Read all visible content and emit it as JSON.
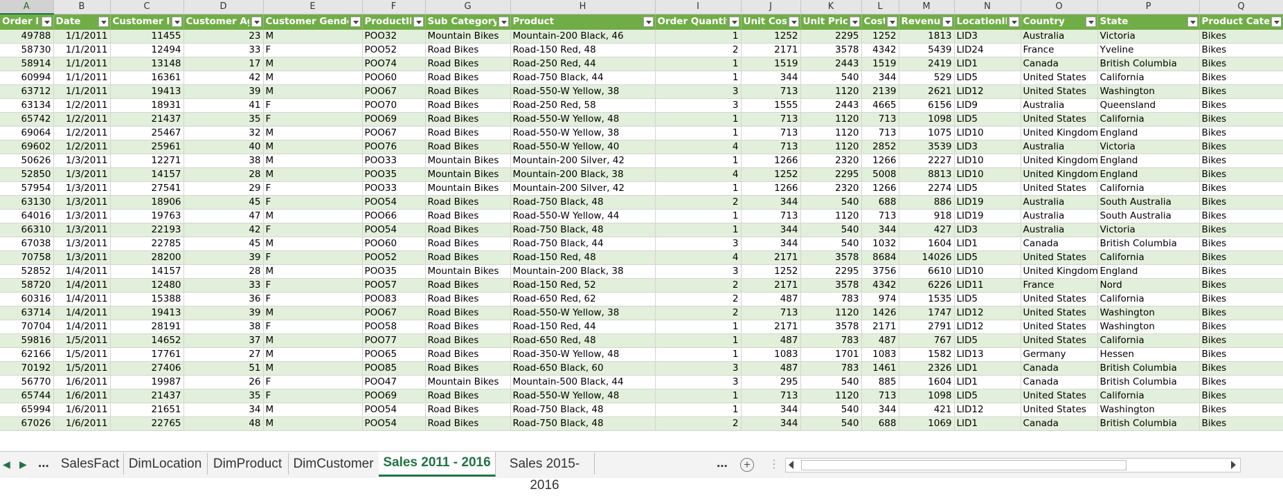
{
  "columns": [
    {
      "letter": "A",
      "header": "Order ID",
      "align": "num"
    },
    {
      "letter": "B",
      "header": "Date",
      "align": "num"
    },
    {
      "letter": "C",
      "header": "Customer ID",
      "align": "num"
    },
    {
      "letter": "D",
      "header": "Customer Age",
      "align": "num"
    },
    {
      "letter": "E",
      "header": "Customer Gender",
      "align": "txt"
    },
    {
      "letter": "F",
      "header": "ProductID",
      "align": "txt"
    },
    {
      "letter": "G",
      "header": "Sub Category",
      "align": "txt"
    },
    {
      "letter": "H",
      "header": "Product",
      "align": "txt"
    },
    {
      "letter": "I",
      "header": "Order Quantity",
      "align": "num"
    },
    {
      "letter": "J",
      "header": "Unit Cost",
      "align": "num"
    },
    {
      "letter": "K",
      "header": "Unit Price",
      "align": "num"
    },
    {
      "letter": "L",
      "header": "Cost",
      "align": "num"
    },
    {
      "letter": "M",
      "header": "Revenue",
      "align": "num"
    },
    {
      "letter": "N",
      "header": "LocationID",
      "align": "txt"
    },
    {
      "letter": "O",
      "header": "Country",
      "align": "txt"
    },
    {
      "letter": "P",
      "header": "State",
      "align": "txt"
    },
    {
      "letter": "Q",
      "header": "Product Category",
      "align": "txt"
    }
  ],
  "active_column": "A",
  "rows": [
    [
      "49788",
      "1/1/2011",
      "11455",
      "23",
      "M",
      "POO32",
      "Mountain Bikes",
      "Mountain-200 Black, 46",
      "1",
      "1252",
      "2295",
      "1252",
      "1813",
      "LID3",
      "Australia",
      "Victoria",
      "Bikes"
    ],
    [
      "58730",
      "1/1/2011",
      "12494",
      "33",
      "F",
      "POO52",
      "Road Bikes",
      "Road-150 Red, 48",
      "2",
      "2171",
      "3578",
      "4342",
      "5439",
      "LID24",
      "France",
      "Yveline",
      "Bikes"
    ],
    [
      "58914",
      "1/1/2011",
      "13148",
      "17",
      "M",
      "POO74",
      "Road Bikes",
      "Road-250 Red, 44",
      "1",
      "1519",
      "2443",
      "1519",
      "2419",
      "LID1",
      "Canada",
      "British Columbia",
      "Bikes"
    ],
    [
      "60994",
      "1/1/2011",
      "16361",
      "42",
      "M",
      "POO60",
      "Road Bikes",
      "Road-750 Black, 44",
      "1",
      "344",
      "540",
      "344",
      "529",
      "LID5",
      "United States",
      "California",
      "Bikes"
    ],
    [
      "63712",
      "1/1/2011",
      "19413",
      "39",
      "M",
      "POO67",
      "Road Bikes",
      "Road-550-W Yellow, 38",
      "3",
      "713",
      "1120",
      "2139",
      "2621",
      "LID12",
      "United States",
      "Washington",
      "Bikes"
    ],
    [
      "63134",
      "1/2/2011",
      "18931",
      "41",
      "F",
      "POO70",
      "Road Bikes",
      "Road-250 Red, 58",
      "3",
      "1555",
      "2443",
      "4665",
      "6156",
      "LID9",
      "Australia",
      "Queensland",
      "Bikes"
    ],
    [
      "65742",
      "1/2/2011",
      "21437",
      "35",
      "F",
      "POO69",
      "Road Bikes",
      "Road-550-W Yellow, 48",
      "1",
      "713",
      "1120",
      "713",
      "1098",
      "LID5",
      "United States",
      "California",
      "Bikes"
    ],
    [
      "69064",
      "1/2/2011",
      "25467",
      "32",
      "M",
      "POO67",
      "Road Bikes",
      "Road-550-W Yellow, 38",
      "1",
      "713",
      "1120",
      "713",
      "1075",
      "LID10",
      "United Kingdom",
      "England",
      "Bikes"
    ],
    [
      "69602",
      "1/2/2011",
      "25961",
      "40",
      "M",
      "POO76",
      "Road Bikes",
      "Road-550-W Yellow, 40",
      "4",
      "713",
      "1120",
      "2852",
      "3539",
      "LID3",
      "Australia",
      "Victoria",
      "Bikes"
    ],
    [
      "50626",
      "1/3/2011",
      "12271",
      "38",
      "M",
      "POO33",
      "Mountain Bikes",
      "Mountain-200 Silver, 42",
      "1",
      "1266",
      "2320",
      "1266",
      "2227",
      "LID10",
      "United Kingdom",
      "England",
      "Bikes"
    ],
    [
      "52850",
      "1/3/2011",
      "14157",
      "28",
      "M",
      "POO35",
      "Mountain Bikes",
      "Mountain-200 Black, 38",
      "4",
      "1252",
      "2295",
      "5008",
      "8813",
      "LID10",
      "United Kingdom",
      "England",
      "Bikes"
    ],
    [
      "57954",
      "1/3/2011",
      "27541",
      "29",
      "F",
      "POO33",
      "Mountain Bikes",
      "Mountain-200 Silver, 42",
      "1",
      "1266",
      "2320",
      "1266",
      "2274",
      "LID5",
      "United States",
      "California",
      "Bikes"
    ],
    [
      "63130",
      "1/3/2011",
      "18906",
      "45",
      "F",
      "POO54",
      "Road Bikes",
      "Road-750 Black, 48",
      "2",
      "344",
      "540",
      "688",
      "886",
      "LID19",
      "Australia",
      "South Australia",
      "Bikes"
    ],
    [
      "64016",
      "1/3/2011",
      "19763",
      "47",
      "M",
      "POO66",
      "Road Bikes",
      "Road-550-W Yellow, 44",
      "1",
      "713",
      "1120",
      "713",
      "918",
      "LID19",
      "Australia",
      "South Australia",
      "Bikes"
    ],
    [
      "66310",
      "1/3/2011",
      "22193",
      "42",
      "F",
      "POO54",
      "Road Bikes",
      "Road-750 Black, 48",
      "1",
      "344",
      "540",
      "344",
      "427",
      "LID3",
      "Australia",
      "Victoria",
      "Bikes"
    ],
    [
      "67038",
      "1/3/2011",
      "22785",
      "45",
      "M",
      "POO60",
      "Road Bikes",
      "Road-750 Black, 44",
      "3",
      "344",
      "540",
      "1032",
      "1604",
      "LID1",
      "Canada",
      "British Columbia",
      "Bikes"
    ],
    [
      "70758",
      "1/3/2011",
      "28200",
      "39",
      "F",
      "POO52",
      "Road Bikes",
      "Road-150 Red, 48",
      "4",
      "2171",
      "3578",
      "8684",
      "14026",
      "LID5",
      "United States",
      "California",
      "Bikes"
    ],
    [
      "52852",
      "1/4/2011",
      "14157",
      "28",
      "M",
      "POO35",
      "Mountain Bikes",
      "Mountain-200 Black, 38",
      "3",
      "1252",
      "2295",
      "3756",
      "6610",
      "LID10",
      "United Kingdom",
      "England",
      "Bikes"
    ],
    [
      "58720",
      "1/4/2011",
      "12480",
      "33",
      "F",
      "POO57",
      "Road Bikes",
      "Road-150 Red, 52",
      "2",
      "2171",
      "3578",
      "4342",
      "6226",
      "LID11",
      "France",
      "Nord",
      "Bikes"
    ],
    [
      "60316",
      "1/4/2011",
      "15388",
      "36",
      "F",
      "POO83",
      "Road Bikes",
      "Road-650 Red, 62",
      "2",
      "487",
      "783",
      "974",
      "1535",
      "LID5",
      "United States",
      "California",
      "Bikes"
    ],
    [
      "63714",
      "1/4/2011",
      "19413",
      "39",
      "M",
      "POO67",
      "Road Bikes",
      "Road-550-W Yellow, 38",
      "2",
      "713",
      "1120",
      "1426",
      "1747",
      "LID12",
      "United States",
      "Washington",
      "Bikes"
    ],
    [
      "70704",
      "1/4/2011",
      "28191",
      "38",
      "F",
      "POO58",
      "Road Bikes",
      "Road-150 Red, 44",
      "1",
      "2171",
      "3578",
      "2171",
      "2791",
      "LID12",
      "United States",
      "Washington",
      "Bikes"
    ],
    [
      "59816",
      "1/5/2011",
      "14652",
      "37",
      "M",
      "POO77",
      "Road Bikes",
      "Road-650 Red, 48",
      "1",
      "487",
      "783",
      "487",
      "767",
      "LID5",
      "United States",
      "California",
      "Bikes"
    ],
    [
      "62166",
      "1/5/2011",
      "17761",
      "27",
      "M",
      "POO65",
      "Road Bikes",
      "Road-350-W Yellow, 48",
      "1",
      "1083",
      "1701",
      "1083",
      "1582",
      "LID13",
      "Germany",
      "Hessen",
      "Bikes"
    ],
    [
      "70192",
      "1/5/2011",
      "27406",
      "51",
      "M",
      "POO85",
      "Road Bikes",
      "Road-650 Black, 60",
      "3",
      "487",
      "783",
      "1461",
      "2326",
      "LID1",
      "Canada",
      "British Columbia",
      "Bikes"
    ],
    [
      "56770",
      "1/6/2011",
      "19987",
      "26",
      "F",
      "POO47",
      "Mountain Bikes",
      "Mountain-500 Black, 44",
      "3",
      "295",
      "540",
      "885",
      "1604",
      "LID1",
      "Canada",
      "British Columbia",
      "Bikes"
    ],
    [
      "65744",
      "1/6/2011",
      "21437",
      "35",
      "F",
      "POO69",
      "Road Bikes",
      "Road-550-W Yellow, 48",
      "1",
      "713",
      "1120",
      "713",
      "1098",
      "LID5",
      "United States",
      "California",
      "Bikes"
    ],
    [
      "65994",
      "1/6/2011",
      "21651",
      "34",
      "M",
      "POO54",
      "Road Bikes",
      "Road-750 Black, 48",
      "1",
      "344",
      "540",
      "344",
      "421",
      "LID12",
      "United States",
      "Washington",
      "Bikes"
    ],
    [
      "67026",
      "1/6/2011",
      "22765",
      "48",
      "M",
      "POO54",
      "Road Bikes",
      "Road-750 Black, 48",
      "2",
      "344",
      "540",
      "688",
      "1069",
      "LID1",
      "Canada",
      "British Columbia",
      "Bikes"
    ]
  ],
  "tabs": {
    "more_left": "...",
    "items": [
      {
        "label": "SalesFact",
        "active": false
      },
      {
        "label": "DimLocation",
        "active": false
      },
      {
        "label": "DimProduct",
        "active": false
      },
      {
        "label": "DimCustomer",
        "active": false
      },
      {
        "label": "Sales 2011 - 2016",
        "active": true
      },
      {
        "label": "Sales 2015- 2016",
        "active": false
      }
    ],
    "more_right": "...",
    "add_label": "+"
  },
  "colors": {
    "header_bg": "#70ad47",
    "band_light": "#e2efda",
    "accent": "#217346"
  }
}
